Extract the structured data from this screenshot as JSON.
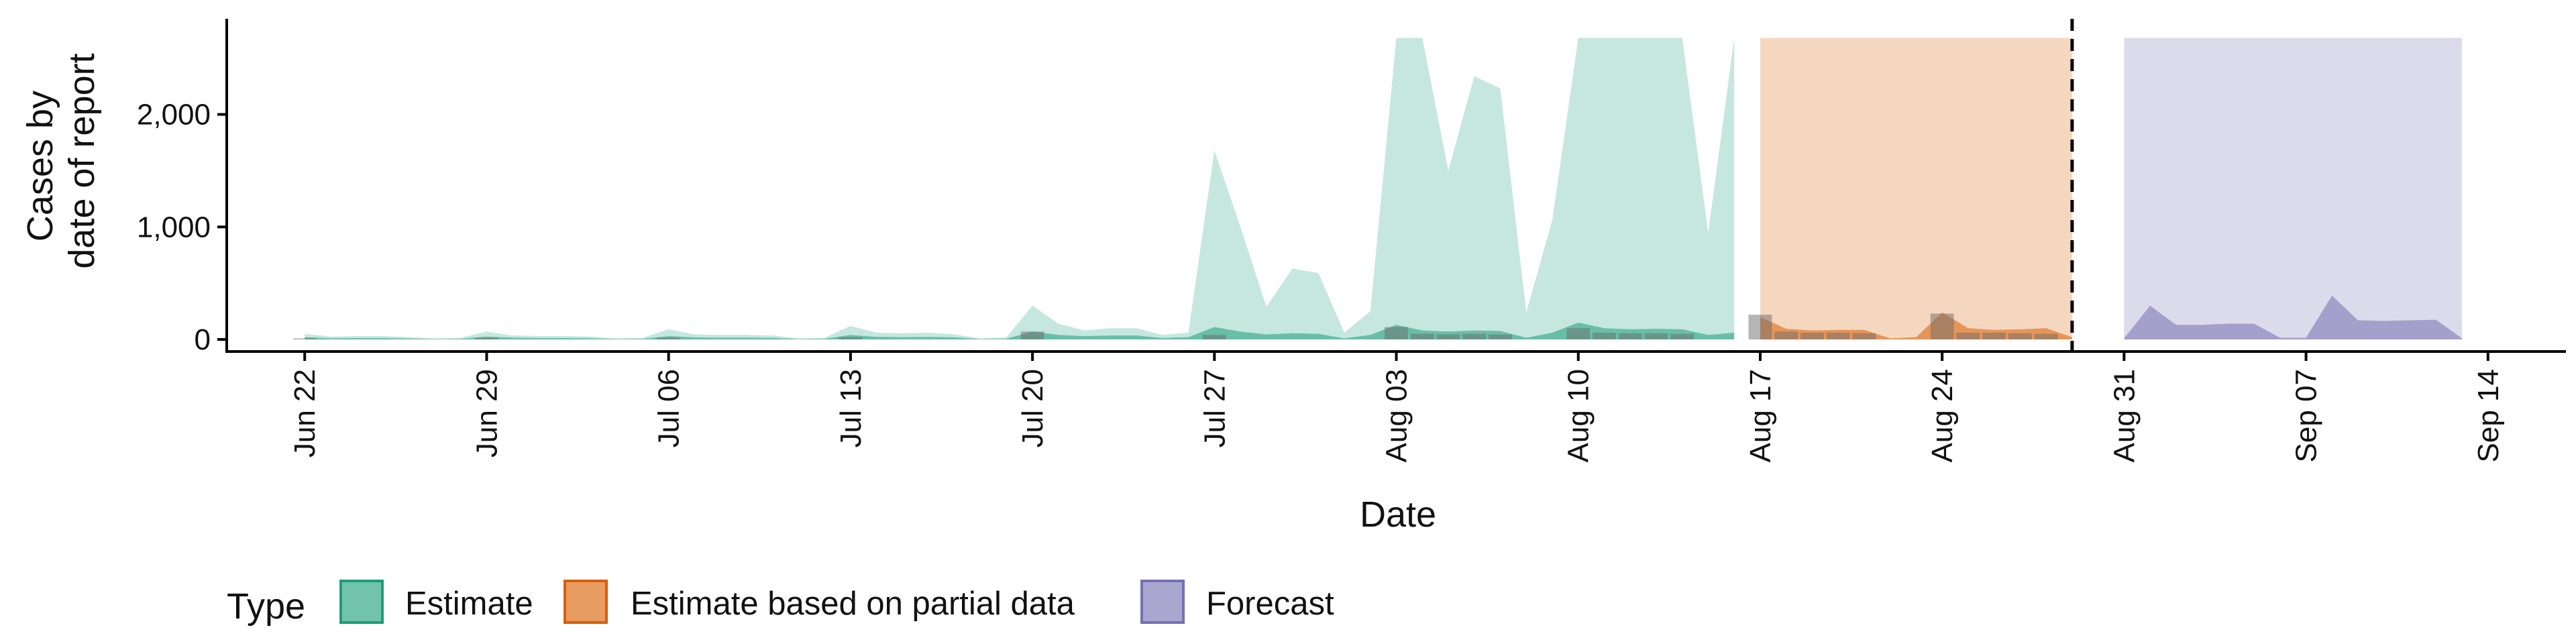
{
  "chart_data": {
    "type": "area",
    "title": "",
    "xlabel": "Date",
    "ylabel": [
      "Cases by",
      "date of report"
    ],
    "x_range": [
      "2020-06-19",
      "2020-09-17"
    ],
    "ylim": [
      0,
      2850
    ],
    "y_ticks": [
      0,
      1000,
      2000
    ],
    "y_tick_labels": [
      "0",
      "1,000",
      "2,000"
    ],
    "x_tick_dates": [
      "2020-06-22",
      "2020-06-29",
      "2020-07-06",
      "2020-07-13",
      "2020-07-20",
      "2020-07-27",
      "2020-08-03",
      "2020-08-10",
      "2020-08-17",
      "2020-08-24",
      "2020-08-31",
      "2020-09-07",
      "2020-09-14"
    ],
    "x_tick_labels": [
      "Jun 22",
      "Jun 29",
      "Jul 06",
      "Jul 13",
      "Jul 20",
      "Jul 27",
      "Aug 03",
      "Aug 10",
      "Aug 17",
      "Aug 24",
      "Aug 31",
      "Sep 07",
      "Sep 14"
    ],
    "forecast_date": "2020-08-29",
    "grid": false,
    "legend": {
      "title": "Type",
      "position": "bottom",
      "entries": [
        "Estimate",
        "Estimate based on partial data",
        "Forecast"
      ]
    },
    "colors": {
      "Estimate": "#1b9e77",
      "Estimate based on partial data": "#d95f02",
      "Forecast": "#7570b3",
      "reported_bars": "#6b6b6b"
    },
    "series": [
      {
        "name": "Estimate",
        "interval": "outer",
        "x": [
          "2020-06-22",
          "2020-06-23",
          "2020-06-24",
          "2020-06-25",
          "2020-06-26",
          "2020-06-27",
          "2020-06-28",
          "2020-06-29",
          "2020-06-30",
          "2020-07-01",
          "2020-07-02",
          "2020-07-03",
          "2020-07-04",
          "2020-07-05",
          "2020-07-06",
          "2020-07-07",
          "2020-07-08",
          "2020-07-09",
          "2020-07-10",
          "2020-07-11",
          "2020-07-12",
          "2020-07-13",
          "2020-07-14",
          "2020-07-15",
          "2020-07-16",
          "2020-07-17",
          "2020-07-18",
          "2020-07-19",
          "2020-07-20",
          "2020-07-21",
          "2020-07-22",
          "2020-07-23",
          "2020-07-24",
          "2020-07-25",
          "2020-07-26",
          "2020-07-27",
          "2020-07-28",
          "2020-07-29",
          "2020-07-30",
          "2020-07-31",
          "2020-08-01",
          "2020-08-02",
          "2020-08-03",
          "2020-08-04",
          "2020-08-05",
          "2020-08-06",
          "2020-08-07",
          "2020-08-08",
          "2020-08-09",
          "2020-08-10",
          "2020-08-11",
          "2020-08-12",
          "2020-08-13",
          "2020-08-14",
          "2020-08-15",
          "2020-08-16"
        ],
        "lower": [
          0,
          0,
          0,
          0,
          0,
          0,
          0,
          0,
          0,
          0,
          0,
          0,
          0,
          0,
          0,
          0,
          0,
          0,
          0,
          0,
          0,
          0,
          0,
          0,
          0,
          0,
          0,
          0,
          0,
          0,
          0,
          0,
          0,
          0,
          0,
          0,
          0,
          0,
          0,
          0,
          0,
          0,
          0,
          0,
          0,
          0,
          0,
          0,
          0,
          0,
          0,
          0,
          0,
          0,
          0,
          0
        ],
        "upper": [
          50,
          25,
          30,
          30,
          20,
          10,
          15,
          70,
          35,
          30,
          30,
          25,
          10,
          15,
          90,
          45,
          40,
          40,
          35,
          10,
          15,
          120,
          60,
          55,
          60,
          45,
          10,
          20,
          300,
          140,
          80,
          100,
          100,
          40,
          60,
          1680,
          1000,
          290,
          630,
          590,
          60,
          250,
          2680,
          2680,
          1500,
          2340,
          2230,
          240,
          1060,
          2680,
          2680,
          2680,
          2680,
          2680,
          950,
          2680
        ]
      },
      {
        "name": "Estimate",
        "interval": "inner",
        "x": [
          "2020-06-22",
          "2020-06-23",
          "2020-06-24",
          "2020-06-25",
          "2020-06-26",
          "2020-06-27",
          "2020-06-28",
          "2020-06-29",
          "2020-06-30",
          "2020-07-01",
          "2020-07-02",
          "2020-07-03",
          "2020-07-04",
          "2020-07-05",
          "2020-07-06",
          "2020-07-07",
          "2020-07-08",
          "2020-07-09",
          "2020-07-10",
          "2020-07-11",
          "2020-07-12",
          "2020-07-13",
          "2020-07-14",
          "2020-07-15",
          "2020-07-16",
          "2020-07-17",
          "2020-07-18",
          "2020-07-19",
          "2020-07-20",
          "2020-07-21",
          "2020-07-22",
          "2020-07-23",
          "2020-07-24",
          "2020-07-25",
          "2020-07-26",
          "2020-07-27",
          "2020-07-28",
          "2020-07-29",
          "2020-07-30",
          "2020-07-31",
          "2020-08-01",
          "2020-08-02",
          "2020-08-03",
          "2020-08-04",
          "2020-08-05",
          "2020-08-06",
          "2020-08-07",
          "2020-08-08",
          "2020-08-09",
          "2020-08-10",
          "2020-08-11",
          "2020-08-12",
          "2020-08-13",
          "2020-08-14",
          "2020-08-15",
          "2020-08-16"
        ],
        "lower": [
          0,
          0,
          0,
          0,
          0,
          0,
          0,
          0,
          0,
          0,
          0,
          0,
          0,
          0,
          0,
          0,
          0,
          0,
          0,
          0,
          0,
          0,
          0,
          0,
          0,
          0,
          0,
          0,
          0,
          0,
          0,
          0,
          0,
          0,
          0,
          0,
          0,
          0,
          0,
          0,
          0,
          0,
          0,
          0,
          0,
          0,
          0,
          0,
          0,
          0,
          0,
          0,
          0,
          0,
          0,
          0
        ],
        "upper": [
          20,
          10,
          12,
          12,
          8,
          3,
          5,
          25,
          15,
          12,
          12,
          10,
          3,
          5,
          30,
          18,
          15,
          15,
          14,
          3,
          5,
          40,
          22,
          20,
          22,
          18,
          3,
          6,
          70,
          40,
          30,
          35,
          35,
          12,
          20,
          110,
          70,
          45,
          55,
          50,
          10,
          40,
          130,
          80,
          70,
          80,
          75,
          15,
          60,
          150,
          100,
          90,
          95,
          90,
          40,
          60
        ]
      },
      {
        "name": "Estimate based on partial data",
        "interval": "outer",
        "x": [
          "2020-08-17",
          "2020-08-29"
        ],
        "lower": [
          0,
          0
        ],
        "upper": [
          2680,
          2680
        ]
      },
      {
        "name": "Estimate based on partial data",
        "interval": "inner",
        "x": [
          "2020-08-17",
          "2020-08-18",
          "2020-08-19",
          "2020-08-20",
          "2020-08-21",
          "2020-08-22",
          "2020-08-23",
          "2020-08-24",
          "2020-08-25",
          "2020-08-26",
          "2020-08-27",
          "2020-08-28",
          "2020-08-29"
        ],
        "lower": [
          0,
          0,
          0,
          0,
          0,
          0,
          0,
          0,
          0,
          0,
          0,
          0,
          0
        ],
        "upper": [
          200,
          95,
          80,
          85,
          85,
          10,
          20,
          240,
          100,
          85,
          90,
          100,
          20
        ]
      },
      {
        "name": "Forecast",
        "interval": "outer",
        "x": [
          "2020-08-31",
          "2020-09-13"
        ],
        "lower": [
          0,
          0
        ],
        "upper": [
          2680,
          2680
        ]
      },
      {
        "name": "Forecast",
        "interval": "inner",
        "x": [
          "2020-08-31",
          "2020-09-01",
          "2020-09-02",
          "2020-09-03",
          "2020-09-04",
          "2020-09-05",
          "2020-09-06",
          "2020-09-07",
          "2020-09-08",
          "2020-09-09",
          "2020-09-10",
          "2020-09-11",
          "2020-09-12",
          "2020-09-13"
        ],
        "lower": [
          0,
          0,
          0,
          0,
          0,
          0,
          0,
          0,
          0,
          0,
          0,
          0,
          0,
          0
        ],
        "upper": [
          10,
          300,
          130,
          130,
          140,
          140,
          15,
          15,
          390,
          170,
          165,
          170,
          175,
          10
        ]
      }
    ],
    "reported_cases": {
      "x": [
        "2020-06-22",
        "2020-06-29",
        "2020-07-06",
        "2020-07-13",
        "2020-07-20",
        "2020-07-27",
        "2020-08-03",
        "2020-08-04",
        "2020-08-05",
        "2020-08-06",
        "2020-08-07",
        "2020-08-10",
        "2020-08-11",
        "2020-08-12",
        "2020-08-13",
        "2020-08-14",
        "2020-08-17",
        "2020-08-18",
        "2020-08-19",
        "2020-08-20",
        "2020-08-21",
        "2020-08-24",
        "2020-08-25",
        "2020-08-26",
        "2020-08-27",
        "2020-08-28"
      ],
      "values": [
        10,
        15,
        15,
        20,
        70,
        40,
        110,
        50,
        45,
        50,
        45,
        100,
        60,
        55,
        55,
        50,
        220,
        70,
        60,
        60,
        55,
        230,
        60,
        60,
        55,
        50
      ]
    }
  }
}
